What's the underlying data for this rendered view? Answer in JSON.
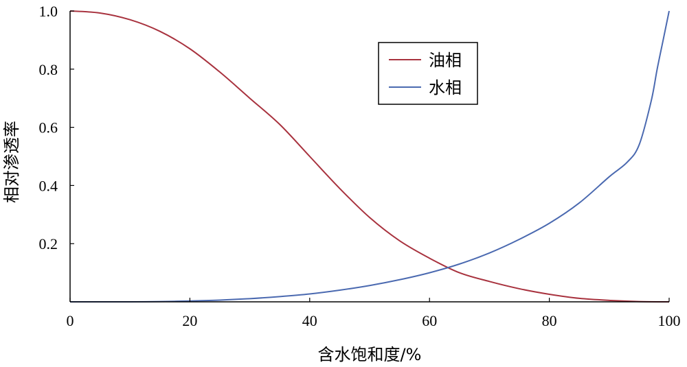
{
  "chart_data": {
    "type": "line",
    "title": "",
    "xlabel": "含水饱和度/%",
    "ylabel": "相对渗透率",
    "xlim": [
      0,
      100
    ],
    "ylim": [
      0,
      1.0
    ],
    "x_ticks": [
      0,
      20,
      40,
      60,
      80,
      100
    ],
    "x_tick_labels": [
      "0",
      "20",
      "40",
      "60",
      "80",
      "100"
    ],
    "y_ticks": [
      0.2,
      0.4,
      0.6,
      0.8,
      1.0
    ],
    "y_tick_labels": [
      "0.2",
      "0.4",
      "0.6",
      "0.8",
      "1.0"
    ],
    "grid": false,
    "legend_position": "top-center",
    "series": [
      {
        "name": "油相",
        "color": "#a8323e",
        "x": [
          0,
          5,
          10,
          15,
          20,
          25,
          30,
          35,
          40,
          45,
          50,
          55,
          60,
          65,
          70,
          75,
          80,
          85,
          90,
          95,
          100
        ],
        "y": [
          1.0,
          0.993,
          0.97,
          0.93,
          0.87,
          0.79,
          0.7,
          0.61,
          0.5,
          0.39,
          0.29,
          0.21,
          0.15,
          0.1,
          0.07,
          0.045,
          0.026,
          0.012,
          0.005,
          0.001,
          0.0
        ]
      },
      {
        "name": "水相",
        "color": "#4a69b0",
        "x": [
          0,
          5,
          10,
          15,
          20,
          25,
          30,
          35,
          40,
          45,
          50,
          55,
          60,
          65,
          70,
          75,
          80,
          85,
          90,
          93,
          95,
          97,
          98,
          99,
          100
        ],
        "y": [
          0.0,
          0.0,
          0.0,
          0.001,
          0.003,
          0.006,
          0.011,
          0.018,
          0.027,
          0.04,
          0.056,
          0.076,
          0.1,
          0.13,
          0.168,
          0.215,
          0.27,
          0.34,
          0.43,
          0.48,
          0.54,
          0.69,
          0.8,
          0.9,
          1.0
        ]
      }
    ]
  }
}
